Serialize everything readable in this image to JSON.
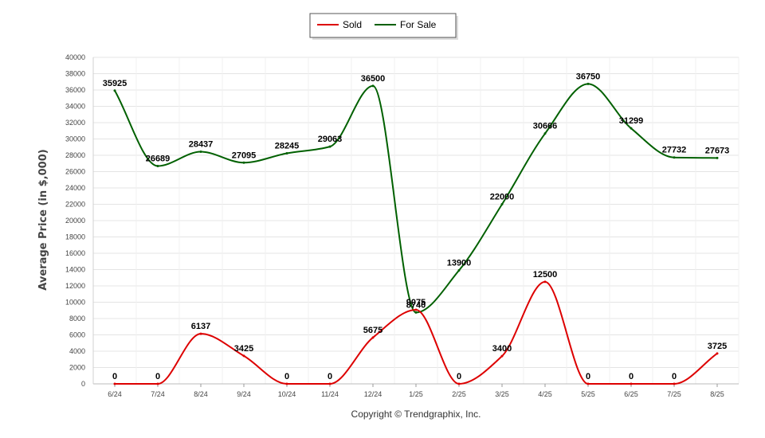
{
  "chart_data": {
    "type": "line",
    "categories": [
      "6/24",
      "7/24",
      "8/24",
      "9/24",
      "10/24",
      "11/24",
      "12/24",
      "1/25",
      "2/25",
      "3/25",
      "4/25",
      "5/25",
      "6/25",
      "7/25",
      "8/25"
    ],
    "series": [
      {
        "name": "Sold",
        "color": "#dd0000",
        "values": [
          0,
          0,
          6137,
          3425,
          0,
          0,
          5675,
          9075,
          0,
          3400,
          12500,
          0,
          0,
          0,
          3725
        ]
      },
      {
        "name": "For Sale",
        "color": "#006000",
        "values": [
          35925,
          26689,
          28437,
          27095,
          28245,
          29063,
          36500,
          8740,
          13900,
          22000,
          30666,
          36750,
          31299,
          27732,
          27673
        ]
      }
    ],
    "ylabel": "Average Price (in $,000)",
    "xlabel": "",
    "ylim": [
      0,
      40000
    ],
    "yticks": [
      0,
      2000,
      4000,
      6000,
      8000,
      10000,
      12000,
      14000,
      16000,
      18000,
      20000,
      22000,
      24000,
      26000,
      28000,
      30000,
      32000,
      34000,
      36000,
      38000,
      40000
    ],
    "grid": true,
    "legend_position": "top-center"
  },
  "footer": {
    "copyright": "Copyright © Trendgraphix, Inc."
  }
}
